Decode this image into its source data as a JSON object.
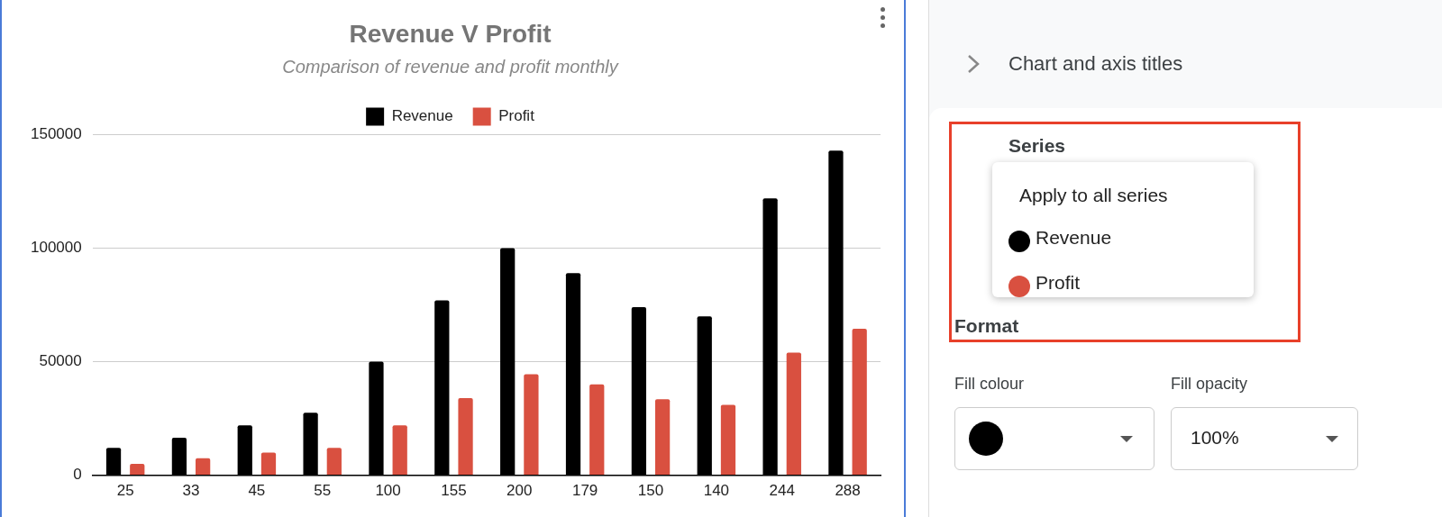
{
  "chart_data": [
    {
      "type": "bar",
      "title": "Revenue V Profit",
      "subtitle": "Comparison of revenue and profit monthly",
      "categories": [
        "25",
        "33",
        "45",
        "55",
        "100",
        "155",
        "200",
        "179",
        "150",
        "140",
        "244",
        "288"
      ],
      "series": [
        {
          "name": "Revenue",
          "color": "#000000",
          "values": [
            12000,
            16500,
            22000,
            27500,
            50000,
            77000,
            100000,
            89000,
            74000,
            70000,
            122000,
            143000
          ]
        },
        {
          "name": "Profit",
          "color": "#d95040",
          "values": [
            5000,
            7500,
            10000,
            12000,
            22000,
            34000,
            44500,
            40000,
            33500,
            31000,
            54000,
            64500
          ]
        }
      ],
      "ylim": [
        0,
        150000
      ],
      "yticks": [
        0,
        50000,
        100000,
        150000
      ],
      "grid": "y",
      "legend": "top"
    },
    {
      "type": "other",
      "annotations": [
        "Chart and axis titles",
        "Series",
        "Apply to all series",
        "Revenue",
        "Profit",
        "Format",
        "Fill colour",
        "Fill opacity",
        "100%"
      ]
    }
  ]
}
